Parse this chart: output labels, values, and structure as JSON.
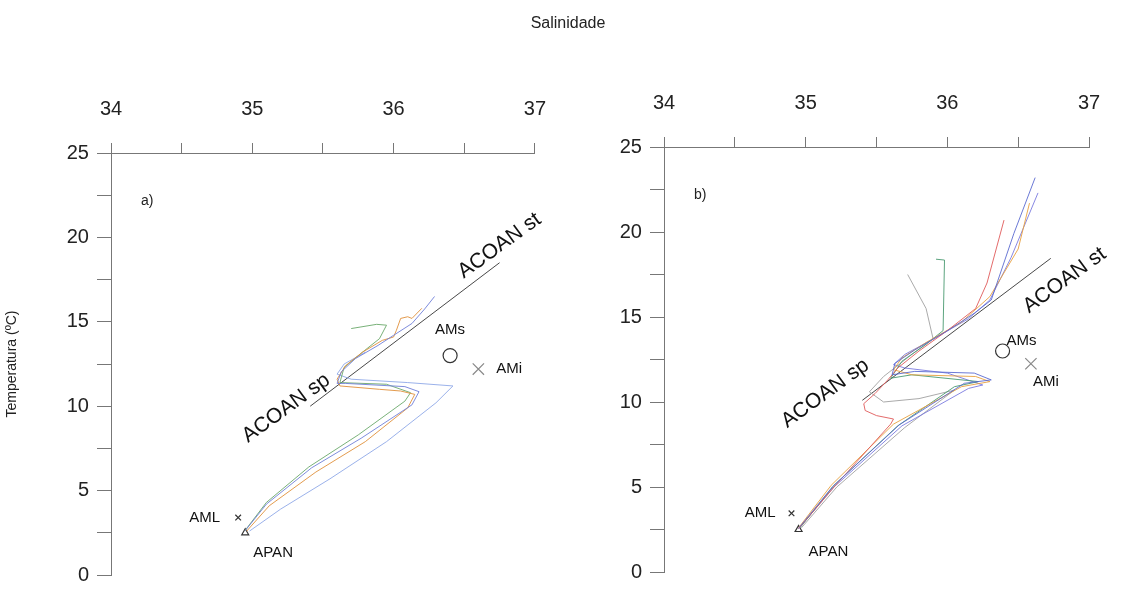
{
  "chart_data": [
    {
      "type": "line",
      "xlabel": "Salinidade",
      "ylabel": "Temperatura (ºC)",
      "xlim": [
        34,
        37
      ],
      "ylim": [
        0,
        25
      ],
      "xticks": [
        34,
        {
          "value": 34.5,
          "label": null
        },
        35,
        {
          "value": 35.5,
          "label": null
        },
        36,
        {
          "value": 36.5,
          "label": null
        },
        37
      ],
      "yticks": [
        0,
        {
          "value": 2.5,
          "label": null
        },
        5,
        {
          "value": 7.5,
          "label": null
        },
        10,
        {
          "value": 12.5,
          "label": null
        },
        15,
        {
          "value": 17.5,
          "label": null
        },
        20,
        {
          "value": 22.5,
          "label": null
        },
        25
      ],
      "grid": false,
      "legend": false,
      "marker": "none",
      "line_style": "solid",
      "annotations": [
        "a)",
        "ACOAN sp",
        "ACOAN st"
      ],
      "series": [
        {
          "type": "line",
          "color": "#6f7fd8",
          "x": [
            34.95,
            35.1,
            35.42,
            35.77,
            36.13,
            36.18,
            36.08,
            35.66,
            35.6,
            35.63,
            35.73,
            35.89,
            36.0,
            36.13,
            36.22,
            36.29
          ],
          "values": [
            2.63,
            4.2,
            6.35,
            8.1,
            10.08,
            10.86,
            11.16,
            11.35,
            11.35,
            12.04,
            12.82,
            13.6,
            14.2,
            14.9,
            15.76,
            16.5
          ]
        },
        {
          "type": "line",
          "color": "#e0903a",
          "x": [
            34.96,
            35.12,
            35.45,
            35.8,
            36.1,
            36.15,
            36.05,
            35.9,
            35.62,
            35.6,
            35.66,
            35.78,
            35.92,
            36.0,
            36.02,
            36.05,
            36.1,
            36.13,
            36.2
          ],
          "values": [
            2.6,
            4.1,
            6.1,
            7.9,
            9.9,
            10.7,
            10.9,
            11.0,
            11.2,
            11.6,
            12.4,
            13.2,
            13.9,
            14.1,
            14.5,
            15.2,
            15.3,
            15.2,
            15.8
          ]
        },
        {
          "type": "line",
          "color": "#6aa86a",
          "x": [
            34.95,
            35.1,
            35.4,
            35.75,
            36.08,
            36.12,
            35.95,
            35.62,
            35.65,
            35.78,
            35.9,
            35.95,
            35.88,
            35.7
          ],
          "values": [
            2.65,
            4.3,
            6.4,
            8.3,
            10.3,
            10.8,
            11.3,
            11.4,
            12.3,
            13.2,
            14.0,
            14.8,
            14.85,
            14.6
          ]
        },
        {
          "type": "line",
          "color": "#8fa8e8",
          "x": [
            34.98,
            35.2,
            35.55,
            35.95,
            36.3,
            36.42,
            36.1,
            35.7,
            35.6,
            35.65,
            35.8
          ],
          "values": [
            2.6,
            3.9,
            5.7,
            7.9,
            10.2,
            11.2,
            11.4,
            11.6,
            11.9,
            12.5,
            13.2
          ]
        },
        {
          "type": "line",
          "color": "#333333",
          "x": [
            35.41,
            36.75
          ],
          "values": [
            10.0,
            18.5
          ]
        },
        {
          "type": "scatter",
          "name": "AML",
          "color": "#333333",
          "marker": "cross",
          "x": [
            34.9
          ],
          "values": [
            3.4
          ]
        },
        {
          "type": "scatter",
          "name": "APAN",
          "color": "#333333",
          "marker": "triangle",
          "x": [
            34.95
          ],
          "values": [
            2.5
          ]
        },
        {
          "type": "scatter",
          "name": "AMs",
          "color": "#333333",
          "marker": "circle",
          "x": [
            36.4
          ],
          "values": [
            13
          ]
        },
        {
          "type": "scatter",
          "name": "AMi",
          "color": "#888888",
          "marker": "cross",
          "x": [
            36.6
          ],
          "values": [
            12.2
          ]
        }
      ]
    },
    {
      "type": "line",
      "xlim": [
        34,
        37
      ],
      "ylim": [
        0,
        25
      ],
      "xticks": [
        34,
        {
          "value": 34.5,
          "label": null
        },
        35,
        {
          "value": 35.5,
          "label": null
        },
        36,
        {
          "value": 36.5,
          "label": null
        },
        37
      ],
      "yticks": [
        0,
        {
          "value": 2.5,
          "label": null
        },
        5,
        {
          "value": 7.5,
          "label": null
        },
        10,
        {
          "value": 12.5,
          "label": null
        },
        15,
        {
          "value": 17.5,
          "label": null
        },
        20,
        {
          "value": 22.5,
          "label": null
        },
        25
      ],
      "grid": false,
      "legend": false,
      "marker": "none",
      "line_style": "solid",
      "annotations": [
        "b)",
        "ACOAN sp",
        "ACOAN st"
      ],
      "series": [
        {
          "type": "line",
          "color": "#5a6ad0",
          "x": [
            34.95,
            35.19,
            35.66,
            36.12,
            36.31,
            36.19,
            35.77,
            35.61,
            35.63,
            35.77,
            36.01,
            36.19,
            36.31,
            36.47,
            36.62
          ],
          "values": [
            2.57,
            5.02,
            8.65,
            11.1,
            11.3,
            11.7,
            11.8,
            11.6,
            12.27,
            13.06,
            14.24,
            15.22,
            16.0,
            19.92,
            23.2
          ]
        },
        {
          "type": "line",
          "color": "#e05a5a",
          "x": [
            34.95,
            35.2,
            35.6,
            35.62,
            35.5,
            35.42,
            35.41,
            35.49,
            35.58,
            35.65,
            35.8,
            36.0,
            36.2,
            36.28,
            36.4
          ],
          "values": [
            2.55,
            5.0,
            8.7,
            9.0,
            9.2,
            9.5,
            9.9,
            10.5,
            11.3,
            12.0,
            13.0,
            14.2,
            15.5,
            17.0,
            20.7
          ]
        },
        {
          "type": "line",
          "color": "#e8a040",
          "x": [
            34.95,
            35.18,
            35.62,
            36.1,
            36.3,
            36.2,
            35.75,
            35.62,
            35.68,
            35.85,
            36.1,
            36.3,
            36.5,
            36.58
          ],
          "values": [
            2.6,
            5.1,
            8.7,
            10.9,
            11.2,
            11.5,
            11.6,
            11.9,
            12.6,
            13.5,
            14.7,
            16.2,
            19.0,
            21.7
          ]
        },
        {
          "type": "line",
          "color": "#4a9a70",
          "x": [
            34.96,
            35.2,
            35.65,
            36.05,
            36.22,
            35.75,
            35.6,
            35.68,
            35.85,
            35.97,
            35.98,
            35.92
          ],
          "values": [
            2.6,
            5.1,
            8.6,
            10.9,
            11.2,
            11.6,
            11.4,
            12.4,
            13.4,
            14.2,
            18.35,
            18.4
          ]
        },
        {
          "type": "line",
          "color": "#7a7ae0",
          "x": [
            34.95,
            35.2,
            35.68,
            36.15,
            36.25,
            36.0,
            35.7,
            35.62,
            35.7,
            35.9,
            36.15,
            36.3,
            36.45,
            36.64
          ],
          "values": [
            2.55,
            5.0,
            8.6,
            10.8,
            11.0,
            11.7,
            12.0,
            12.2,
            12.8,
            13.7,
            14.9,
            16.0,
            18.5,
            22.3
          ]
        },
        {
          "type": "line",
          "color": "#a0a0a0",
          "x": [
            34.97,
            35.22,
            35.7,
            36.05,
            35.8,
            35.55,
            35.45,
            35.55,
            35.75,
            35.9,
            35.85,
            35.72
          ],
          "values": [
            2.6,
            5.0,
            8.5,
            10.7,
            10.2,
            10.0,
            10.6,
            11.5,
            12.8,
            13.7,
            15.5,
            17.5
          ]
        },
        {
          "type": "line",
          "color": "#333333",
          "x": [
            35.4,
            36.73
          ],
          "values": [
            10.1,
            18.45
          ]
        },
        {
          "type": "scatter",
          "name": "AML",
          "color": "#333333",
          "marker": "cross",
          "x": [
            34.9
          ],
          "values": [
            3.45
          ]
        },
        {
          "type": "scatter",
          "name": "APAN",
          "color": "#333333",
          "marker": "triangle",
          "x": [
            34.95
          ],
          "values": [
            2.5
          ]
        },
        {
          "type": "scatter",
          "name": "AMs",
          "color": "#333333",
          "marker": "circle",
          "x": [
            36.39
          ],
          "values": [
            13
          ]
        },
        {
          "type": "scatter",
          "name": "AMi",
          "color": "#888888",
          "marker": "cross",
          "x": [
            36.59
          ],
          "values": [
            12.25
          ]
        }
      ]
    }
  ]
}
